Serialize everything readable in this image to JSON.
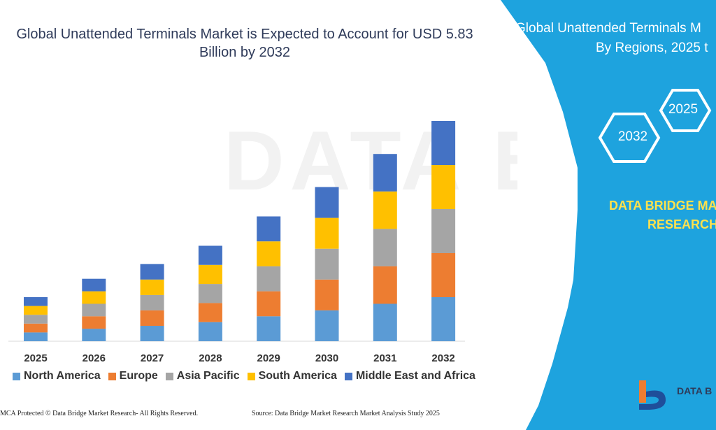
{
  "title": {
    "line1": "Global Unattended Terminals Market is Expected to Account for USD 5.83",
    "line2": "Billion by 2032"
  },
  "panel": {
    "title_line1": "Global Unattended Terminals M",
    "title_line2": "By Regions, 2025 t",
    "hex_2025": "2025",
    "hex_2032": "2032",
    "brand_line1": "DATA BRIDGE MA",
    "brand_line2": "RESEARCH",
    "logo_text": "DATA B"
  },
  "footer": {
    "left": "MCA Protected © Data Bridge Market Research-  All Rights Reserved.",
    "right": "Source: Data Bridge Market Research  Market Analysis Study 2025"
  },
  "colors": {
    "panel_blue": "#1ea3de",
    "hex_stroke": "#ffffff",
    "brand_yellow": "#ffe14d"
  },
  "chart_data": {
    "type": "bar",
    "stacked": true,
    "categories": [
      "2025",
      "2026",
      "2027",
      "2028",
      "2029",
      "2030",
      "2031",
      "2032"
    ],
    "series": [
      {
        "name": "North America",
        "color": "#5b9bd5",
        "values": [
          12,
          17,
          21,
          26,
          34,
          42,
          51,
          60
        ]
      },
      {
        "name": "Europe",
        "color": "#ed7d31",
        "values": [
          12,
          17,
          21,
          26,
          34,
          42,
          51,
          60
        ]
      },
      {
        "name": "Asia Pacific",
        "color": "#a5a5a5",
        "values": [
          12,
          17,
          21,
          26,
          34,
          42,
          51,
          60
        ]
      },
      {
        "name": "South America",
        "color": "#ffc000",
        "values": [
          12,
          17,
          21,
          26,
          34,
          42,
          51,
          60
        ]
      },
      {
        "name": "Middle East and Africa",
        "color": "#4472c4",
        "values": [
          12,
          17,
          21,
          26,
          34,
          42,
          51,
          60
        ]
      }
    ],
    "title": "Global Unattended Terminals Market is Expected to Account for USD 5.83 Billion by 2032",
    "xlabel": "",
    "ylabel": "",
    "ylim": [
      0,
      300
    ],
    "legend": "bottom",
    "grid": false
  }
}
